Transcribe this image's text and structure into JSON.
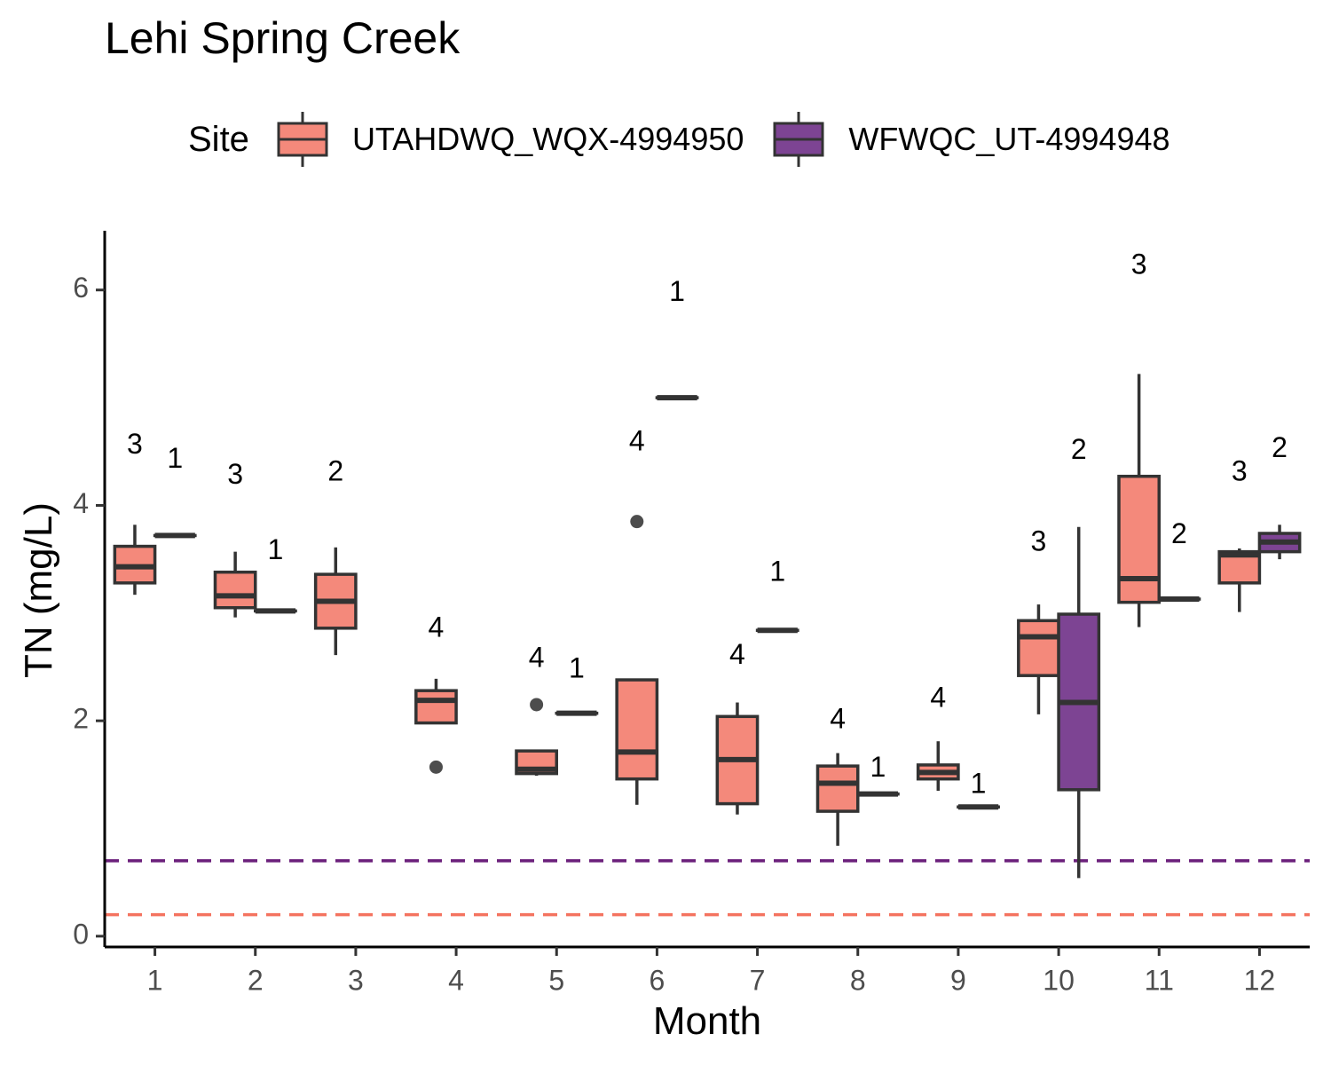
{
  "chart_data": {
    "type": "boxplot",
    "title": "Lehi Spring Creek",
    "xlabel": "Month",
    "ylabel": "TN (mg/L)",
    "legend_title": "Site",
    "legend_position": "top",
    "categories": [
      "1",
      "2",
      "3",
      "4",
      "5",
      "6",
      "7",
      "8",
      "9",
      "10",
      "11",
      "12"
    ],
    "ylim": [
      -0.1,
      6.55
    ],
    "yticks": [
      0,
      2,
      4,
      6
    ],
    "grid": false,
    "series": [
      {
        "name": "UTAHDWQ_WQX-4994950",
        "color": "#F4897B",
        "boxes": [
          {
            "month": "1",
            "n": 3,
            "min": 3.17,
            "q1": 3.28,
            "median": 3.43,
            "q3": 3.62,
            "max": 3.82,
            "outliers": []
          },
          {
            "month": "2",
            "n": 3,
            "min": 2.96,
            "q1": 3.05,
            "median": 3.16,
            "q3": 3.38,
            "max": 3.57,
            "outliers": []
          },
          {
            "month": "3",
            "n": 2,
            "min": 2.61,
            "q1": 2.86,
            "median": 3.11,
            "q3": 3.36,
            "max": 3.61,
            "outliers": []
          },
          {
            "month": "4",
            "n": 4,
            "min": 1.98,
            "q1": 1.98,
            "median": 2.19,
            "q3": 2.28,
            "max": 2.39,
            "outliers": [
              1.57
            ]
          },
          {
            "month": "5",
            "n": 4,
            "min": 1.49,
            "q1": 1.51,
            "median": 1.55,
            "q3": 1.72,
            "max": 1.72,
            "outliers": [
              2.15
            ]
          },
          {
            "month": "6",
            "n": 4,
            "min": 1.22,
            "q1": 1.46,
            "median": 1.71,
            "q3": 2.38,
            "max": 2.38,
            "outliers": [
              3.85
            ]
          },
          {
            "month": "7",
            "n": 4,
            "min": 1.13,
            "q1": 1.23,
            "median": 1.64,
            "q3": 2.04,
            "max": 2.17,
            "outliers": []
          },
          {
            "month": "8",
            "n": 4,
            "min": 0.84,
            "q1": 1.16,
            "median": 1.42,
            "q3": 1.58,
            "max": 1.7,
            "outliers": []
          },
          {
            "month": "9",
            "n": 4,
            "min": 1.35,
            "q1": 1.46,
            "median": 1.52,
            "q3": 1.59,
            "max": 1.81,
            "outliers": []
          },
          {
            "month": "10",
            "n": 3,
            "min": 2.06,
            "q1": 2.42,
            "median": 2.78,
            "q3": 2.93,
            "max": 3.08,
            "outliers": []
          },
          {
            "month": "11",
            "n": 3,
            "min": 2.87,
            "q1": 3.1,
            "median": 3.32,
            "q3": 4.27,
            "max": 5.22,
            "outliers": []
          },
          {
            "month": "12",
            "n": 3,
            "min": 3.01,
            "q1": 3.28,
            "median": 3.54,
            "q3": 3.57,
            "max": 3.6,
            "outliers": []
          }
        ]
      },
      {
        "name": "WFWQC_UT-4994948",
        "color": "#7D4493",
        "boxes": [
          {
            "month": "1",
            "n": 1,
            "min": 3.72,
            "q1": 3.72,
            "median": 3.72,
            "q3": 3.72,
            "max": 3.72,
            "outliers": []
          },
          {
            "month": "2",
            "n": 1,
            "min": 3.02,
            "q1": 3.02,
            "median": 3.02,
            "q3": 3.02,
            "max": 3.02,
            "outliers": []
          },
          {
            "month": "5",
            "n": 1,
            "min": 2.07,
            "q1": 2.07,
            "median": 2.07,
            "q3": 2.07,
            "max": 2.07,
            "outliers": []
          },
          {
            "month": "6",
            "n": 1,
            "min": 5.0,
            "q1": 5.0,
            "median": 5.0,
            "q3": 5.0,
            "max": 5.0,
            "outliers": []
          },
          {
            "month": "7",
            "n": 1,
            "min": 2.84,
            "q1": 2.84,
            "median": 2.84,
            "q3": 2.84,
            "max": 2.84,
            "outliers": []
          },
          {
            "month": "8",
            "n": 1,
            "min": 1.32,
            "q1": 1.32,
            "median": 1.32,
            "q3": 1.32,
            "max": 1.32,
            "outliers": []
          },
          {
            "month": "9",
            "n": 1,
            "min": 1.2,
            "q1": 1.2,
            "median": 1.2,
            "q3": 1.2,
            "max": 1.2,
            "outliers": []
          },
          {
            "month": "10",
            "n": 2,
            "min": 0.54,
            "q1": 1.36,
            "median": 2.17,
            "q3": 2.99,
            "max": 3.8,
            "outliers": []
          },
          {
            "month": "11",
            "n": 2,
            "min": 3.13,
            "q1": 3.13,
            "median": 3.13,
            "q3": 3.13,
            "max": 3.13,
            "outliers": []
          },
          {
            "month": "12",
            "n": 2,
            "min": 3.5,
            "q1": 3.57,
            "median": 3.66,
            "q3": 3.74,
            "max": 3.82,
            "outliers": []
          }
        ]
      }
    ],
    "count_labels": [
      {
        "month": "1",
        "series": "UTAHDWQ_WQX-4994950",
        "text": "3",
        "y": 4.55
      },
      {
        "month": "1",
        "series": "WFWQC_UT-4994948",
        "text": "1",
        "y": 4.42
      },
      {
        "month": "2",
        "series": "UTAHDWQ_WQX-4994950",
        "text": "3",
        "y": 4.27
      },
      {
        "month": "2",
        "series": "WFWQC_UT-4994948",
        "text": "1",
        "y": 3.57
      },
      {
        "month": "3",
        "series": "UTAHDWQ_WQX-4994950",
        "text": "2",
        "y": 4.3
      },
      {
        "month": "4",
        "series": "UTAHDWQ_WQX-4994950",
        "text": "4",
        "y": 2.85
      },
      {
        "month": "5",
        "series": "UTAHDWQ_WQX-4994950",
        "text": "4",
        "y": 2.57
      },
      {
        "month": "5",
        "series": "WFWQC_UT-4994948",
        "text": "1",
        "y": 2.47
      },
      {
        "month": "6",
        "series": "UTAHDWQ_WQX-4994950",
        "text": "4",
        "y": 4.58
      },
      {
        "month": "6",
        "series": "WFWQC_UT-4994948",
        "text": "1",
        "y": 5.97
      },
      {
        "month": "7",
        "series": "UTAHDWQ_WQX-4994950",
        "text": "4",
        "y": 2.6
      },
      {
        "month": "7",
        "series": "WFWQC_UT-4994948",
        "text": "1",
        "y": 3.37
      },
      {
        "month": "8",
        "series": "UTAHDWQ_WQX-4994950",
        "text": "4",
        "y": 2.0
      },
      {
        "month": "8",
        "series": "WFWQC_UT-4994948",
        "text": "1",
        "y": 1.55
      },
      {
        "month": "9",
        "series": "UTAHDWQ_WQX-4994950",
        "text": "4",
        "y": 2.2
      },
      {
        "month": "9",
        "series": "WFWQC_UT-4994948",
        "text": "1",
        "y": 1.4
      },
      {
        "month": "10",
        "series": "UTAHDWQ_WQX-4994950",
        "text": "3",
        "y": 3.65
      },
      {
        "month": "10",
        "series": "WFWQC_UT-4994948",
        "text": "2",
        "y": 4.5
      },
      {
        "month": "11",
        "series": "UTAHDWQ_WQX-4994950",
        "text": "3",
        "y": 6.22
      },
      {
        "month": "11",
        "series": "WFWQC_UT-4994948",
        "text": "2",
        "y": 3.72
      },
      {
        "month": "12",
        "series": "UTAHDWQ_WQX-4994950",
        "text": "3",
        "y": 4.3
      },
      {
        "month": "12",
        "series": "WFWQC_UT-4994948",
        "text": "2",
        "y": 4.52
      }
    ],
    "reference_lines": [
      {
        "y": 0.7,
        "color": "#6B1F7B",
        "style": "dashed"
      },
      {
        "y": 0.2,
        "color": "#F4735F",
        "style": "dashed"
      }
    ]
  }
}
